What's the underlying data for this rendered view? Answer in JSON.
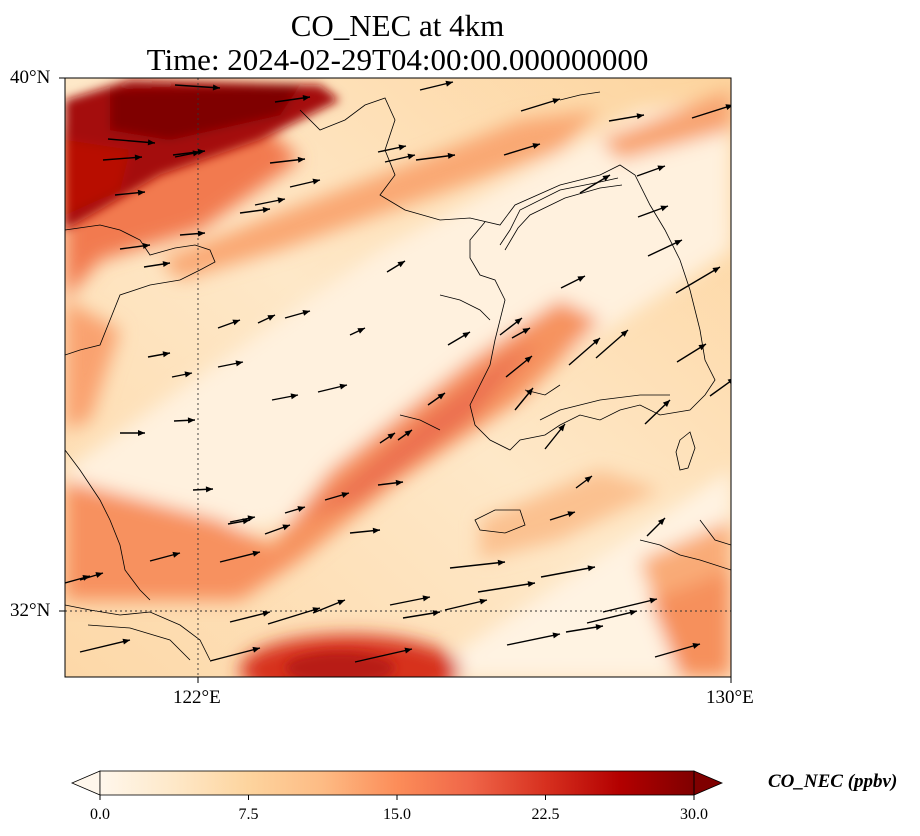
{
  "title": {
    "line1": "CO_NEC at 4km",
    "line2": "Time: 2024-02-29T04:00:00.000000000"
  },
  "map": {
    "projection": "PlateCarree",
    "lon_range": [
      120,
      130
    ],
    "lat_range": [
      31,
      40
    ],
    "gridlines": {
      "lon": [
        122
      ],
      "lat": [
        32
      ],
      "style": "dotted"
    },
    "lat_tick_labels": [
      {
        "lat": 40,
        "label": "40°N"
      },
      {
        "lat": 32,
        "label": "32°N"
      }
    ],
    "lon_tick_labels": [
      {
        "lon": 122,
        "label": "122°E"
      },
      {
        "lon": 130,
        "label": "130°E"
      }
    ],
    "field": "CO_NEC",
    "field_description": "carbon monoxide concentration shaded with OrRd colormap, wind vectors overlaid",
    "wind_vector_color": "#000000",
    "coastline_color": "#000000"
  },
  "colorbar": {
    "label": "CO_NEC (ppbv)",
    "colormap": "OrRd",
    "vmin": 0.0,
    "vmax": 30.0,
    "extend": "both",
    "ticks": [
      "0.0",
      "7.5",
      "15.0",
      "22.5",
      "30.0"
    ],
    "tick_values": [
      0,
      7.5,
      15,
      22.5,
      30
    ],
    "colors": [
      "#fff7ec",
      "#fee8c8",
      "#fdd49e",
      "#fdbb84",
      "#fc8d59",
      "#ef6548",
      "#d7301f",
      "#b30000",
      "#7f0000"
    ]
  }
}
